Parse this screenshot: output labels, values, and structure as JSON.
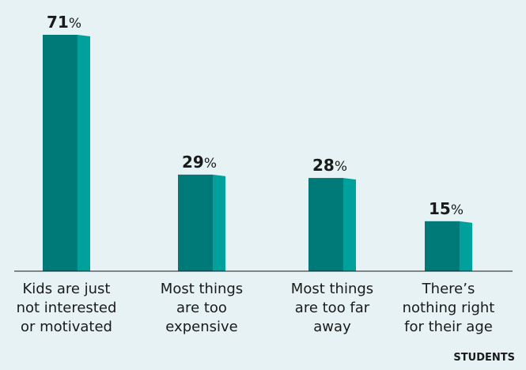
{
  "chart_data": {
    "type": "bar",
    "categories": [
      [
        "Kids are just",
        "not interested",
        "or motivated"
      ],
      [
        "Most things",
        "are too",
        "expensive"
      ],
      [
        "Most things",
        "are too far",
        "away"
      ],
      [
        "There’s",
        "nothing right",
        "for their age"
      ]
    ],
    "values": [
      71,
      29,
      28,
      15
    ],
    "value_labels": [
      "71",
      "29",
      "28",
      "15"
    ],
    "unit": "%",
    "ylim": [
      0,
      71
    ],
    "grid": false,
    "legend": "none",
    "colors": {
      "bar_front": "#007a78",
      "bar_side": "#00a19d",
      "text": "#1a1a1a",
      "baseline": "#1a1a1a",
      "background": "#e6f2f3"
    }
  },
  "footer": {
    "label": "STUDENTS"
  }
}
